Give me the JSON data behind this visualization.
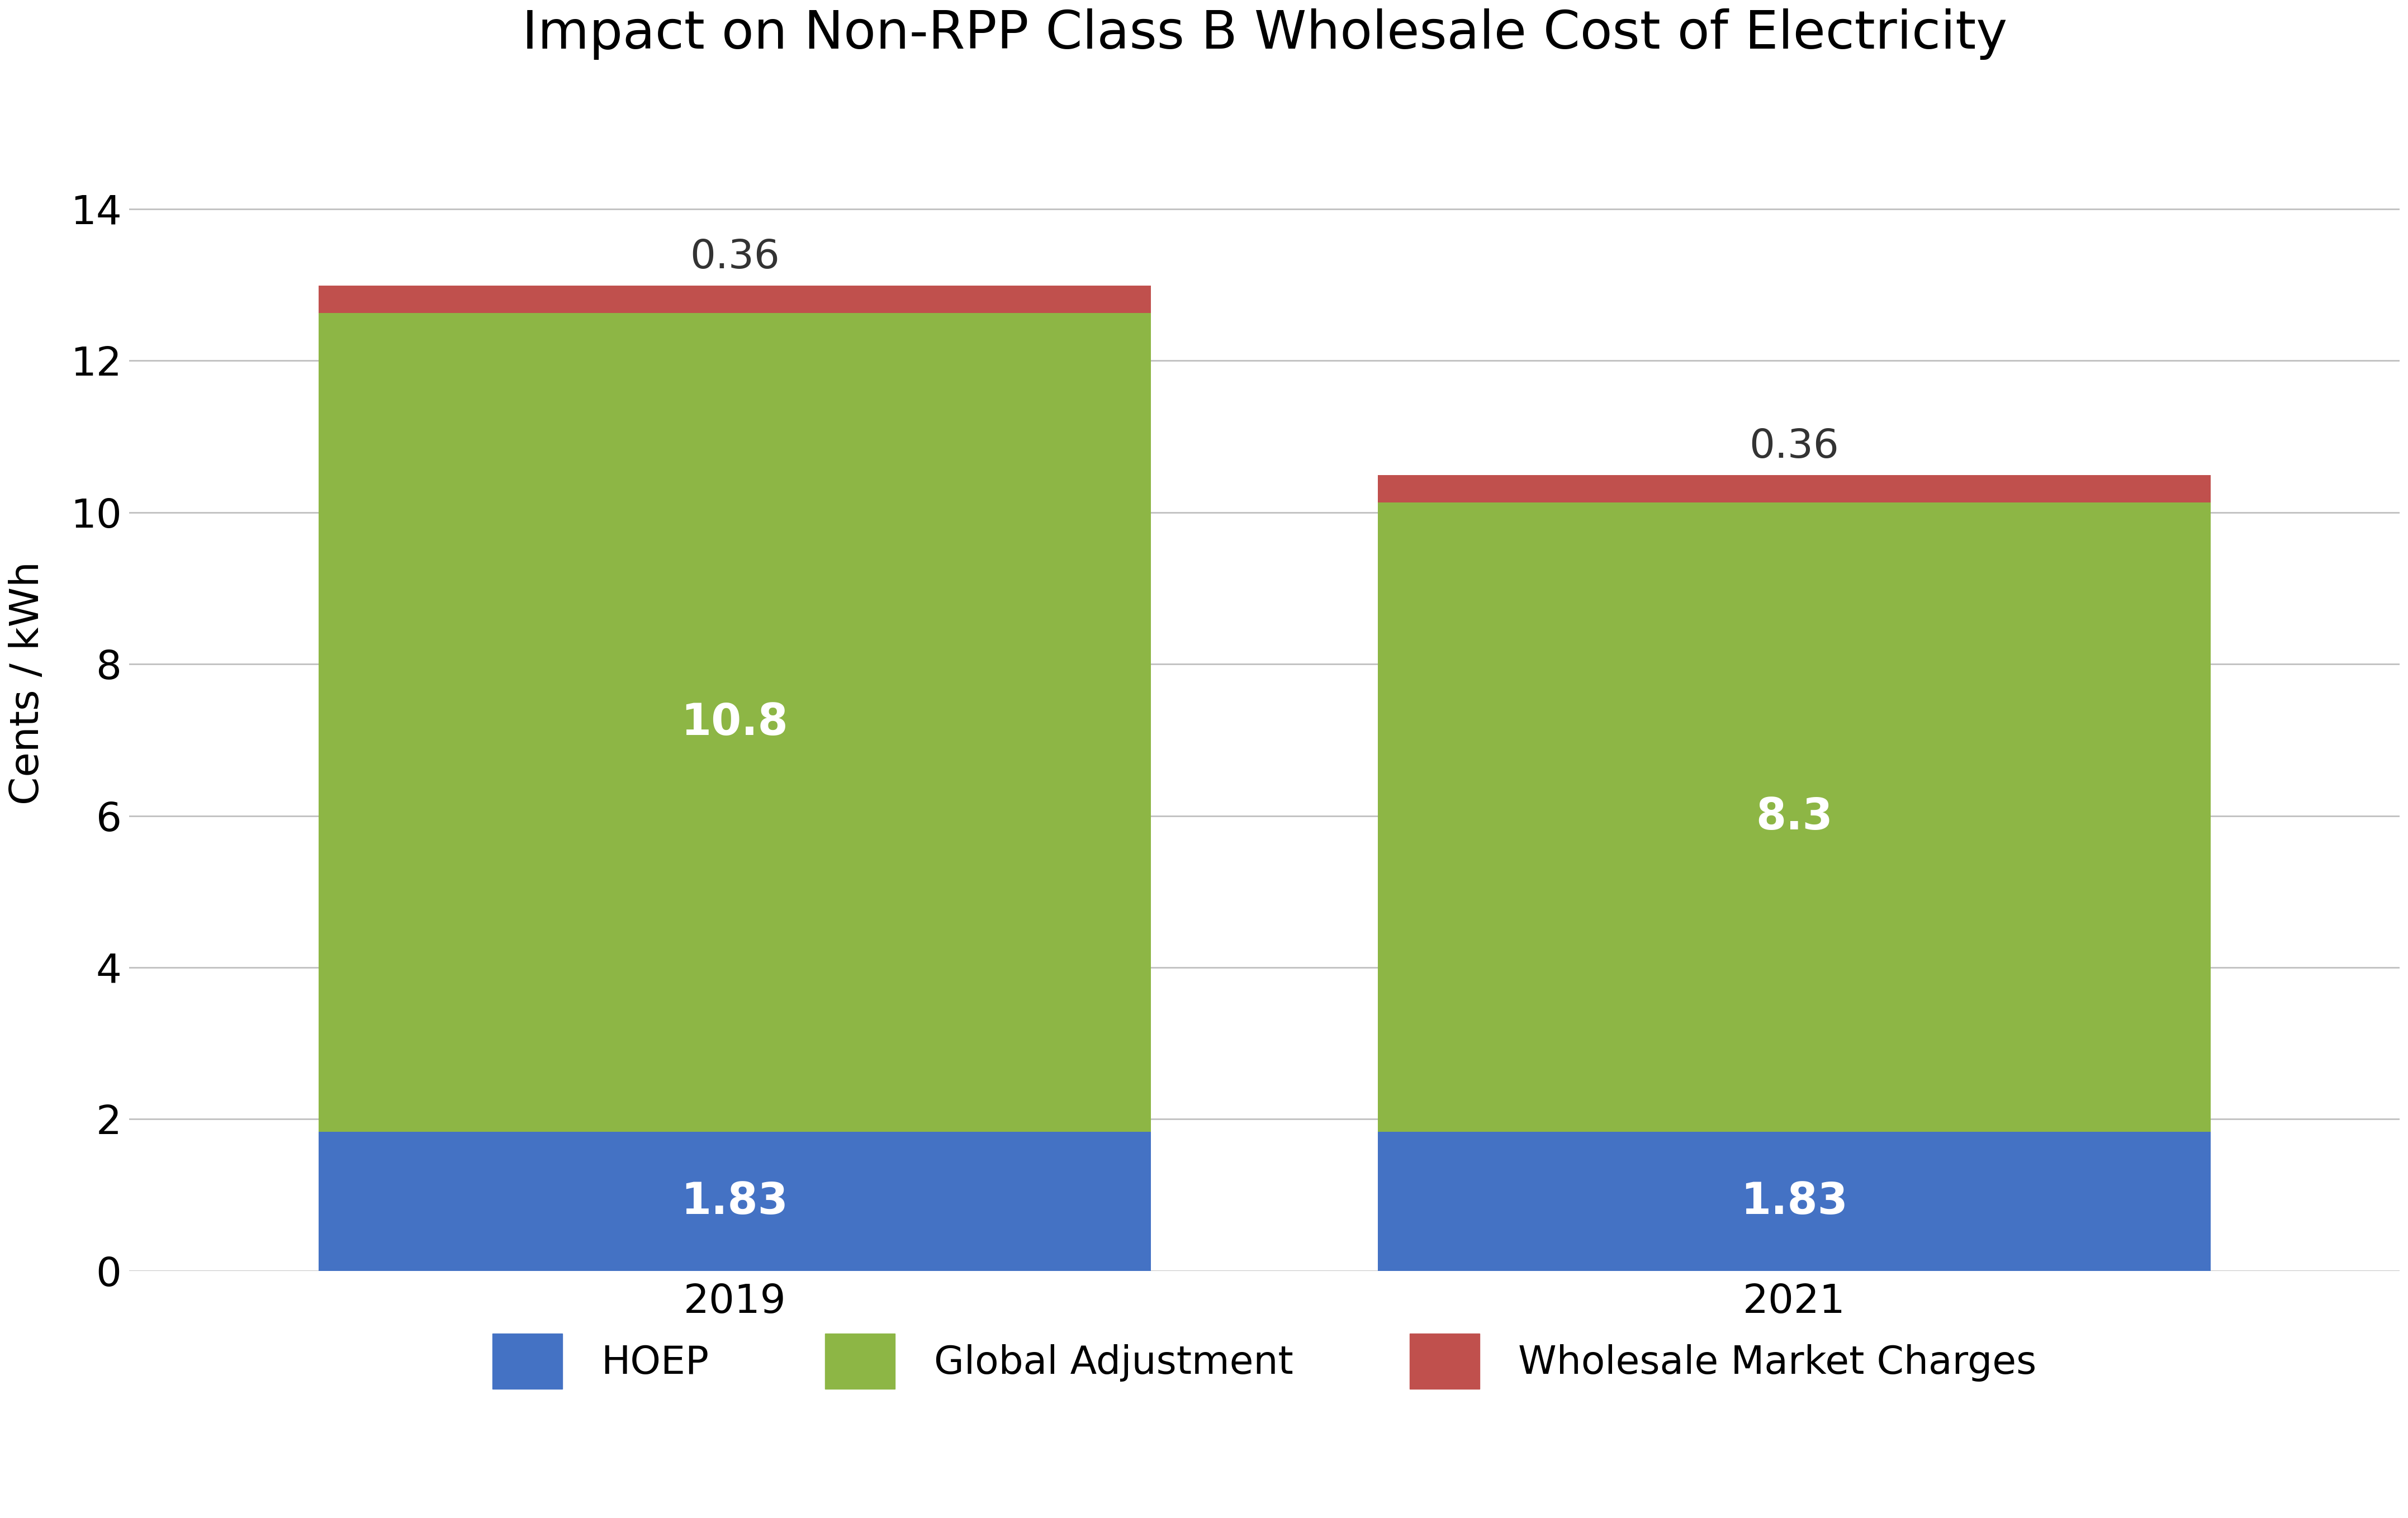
{
  "title": "Impact on Non-RPP Class B Wholesale Cost of Electricity",
  "categories": [
    "2019",
    "2021"
  ],
  "hoep": [
    1.83,
    1.83
  ],
  "global_adjustment": [
    10.8,
    8.3
  ],
  "wholesale_market_charges": [
    0.36,
    0.36
  ],
  "colors": {
    "hoep": "#4472C4",
    "global_adjustment": "#8DB645",
    "wholesale_market_charges": "#C0504D"
  },
  "ylabel": "Cents / kWh",
  "ylim": [
    0,
    15.5
  ],
  "yticks": [
    0,
    2,
    4,
    6,
    8,
    10,
    12,
    14
  ],
  "bar_width": 0.55,
  "bar_positions": [
    0.3,
    1.0
  ],
  "xlim": [
    -0.1,
    1.4
  ],
  "legend_labels": [
    "HOEP",
    "Global Adjustment",
    "Wholesale Market Charges"
  ],
  "title_fontsize": 68,
  "axis_fontsize": 52,
  "tick_fontsize": 52,
  "legend_fontsize": 50,
  "label_fontsize_inside": 56,
  "label_fontsize_outside": 52,
  "background_color": "#FFFFFF",
  "grid_color": "#C0C0C0"
}
